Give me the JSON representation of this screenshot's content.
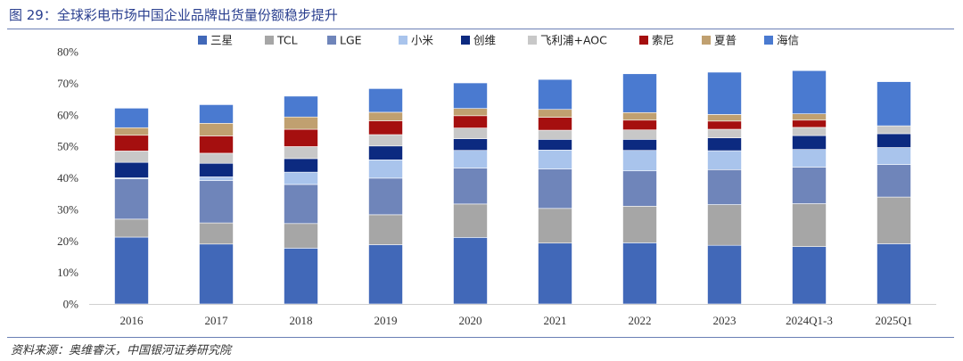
{
  "figure": {
    "title": "图 29：全球彩电市场中国企业品牌出货量份额稳步提升",
    "source": "资料来源：奥维睿沃，中国银河证券研究院"
  },
  "chart_data": {
    "type": "bar",
    "stacked": true,
    "categories": [
      "2016",
      "2017",
      "2018",
      "2019",
      "2020",
      "2021",
      "2022",
      "2023",
      "2024Q1-3",
      "2025Q1"
    ],
    "ylim": [
      0,
      80
    ],
    "yticks": [
      "0%",
      "10%",
      "20%",
      "30%",
      "40%",
      "50%",
      "60%",
      "70%",
      "80%"
    ],
    "grid": false,
    "legend_position": "top",
    "series": [
      {
        "name": "三星",
        "color": "#4168b8",
        "values": [
          21.2,
          19.0,
          17.7,
          18.8,
          21.1,
          19.3,
          19.4,
          18.6,
          18.2,
          19.1
        ]
      },
      {
        "name": "TCL",
        "color": "#a6a6a6",
        "values": [
          5.7,
          6.7,
          7.8,
          9.5,
          10.6,
          11.0,
          11.6,
          12.9,
          13.6,
          14.8
        ]
      },
      {
        "name": "LGE",
        "color": "#6f85ba",
        "values": [
          12.8,
          13.4,
          12.4,
          11.6,
          11.4,
          12.5,
          11.2,
          11.1,
          11.6,
          10.3
        ]
      },
      {
        "name": "小米",
        "color": "#a9c4ec",
        "values": [
          0.3,
          1.2,
          3.9,
          5.8,
          5.6,
          6.0,
          6.5,
          6.0,
          5.6,
          5.4
        ]
      },
      {
        "name": "创维",
        "color": "#0c2a80",
        "values": [
          4.9,
          4.3,
          4.3,
          4.4,
          3.7,
          3.4,
          3.5,
          4.1,
          4.4,
          4.4
        ]
      },
      {
        "name": "飞利浦+AOC",
        "color": "#c8c8c8",
        "values": [
          3.6,
          3.2,
          3.8,
          3.6,
          3.4,
          2.9,
          3.0,
          2.7,
          2.6,
          2.5
        ]
      },
      {
        "name": "索尼",
        "color": "#a50f0f",
        "values": [
          5.0,
          5.5,
          5.5,
          4.4,
          3.9,
          4.1,
          3.1,
          2.6,
          2.3,
          0.0
        ]
      },
      {
        "name": "夏普",
        "color": "#c0a070",
        "values": [
          2.4,
          4.0,
          3.9,
          2.7,
          2.3,
          2.5,
          2.4,
          2.1,
          2.0,
          0.0
        ]
      },
      {
        "name": "海信",
        "color": "#4a7ad0",
        "values": [
          6.2,
          5.9,
          6.6,
          7.5,
          8.1,
          9.5,
          12.3,
          13.4,
          13.7,
          14.0
        ]
      }
    ]
  }
}
